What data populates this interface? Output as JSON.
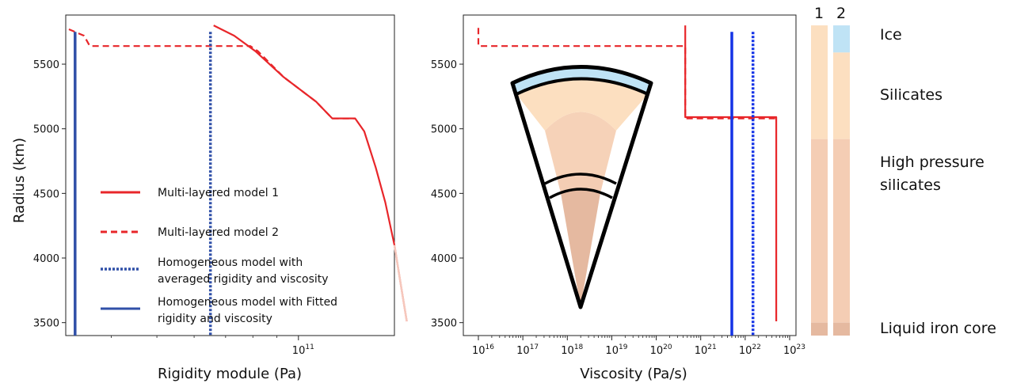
{
  "chart_data": [
    {
      "type": "line",
      "xlabel": "Rigidity module (Pa)",
      "ylabel": "Radius (km)",
      "xscale": "log",
      "xlim": [
        32000000000.0,
        160000000000.0
      ],
      "ylim": [
        3400,
        5880
      ],
      "xticks": [
        {
          "value": 100000000000.0,
          "label": "10",
          "sup": "11"
        }
      ],
      "yticks": [
        {
          "value": 3500,
          "label": "3500"
        },
        {
          "value": 4000,
          "label": "4000"
        },
        {
          "value": 4500,
          "label": "4500"
        },
        {
          "value": 5000,
          "label": "5000"
        },
        {
          "value": 5500,
          "label": "5500"
        }
      ],
      "legend_position": "lower-left",
      "series": [
        {
          "name": "Multi-layered model 1",
          "color": "#e8262a",
          "style": "solid",
          "points": [
            [
              66000000000.0,
              5800
            ],
            [
              73000000000.0,
              5720
            ],
            [
              81000000000.0,
              5600
            ],
            [
              93000000000.0,
              5400
            ],
            [
              109000000000.0,
              5210
            ],
            [
              118000000000.0,
              5080
            ],
            [
              132000000000.0,
              5080
            ],
            [
              138000000000.0,
              4980
            ],
            [
              146000000000.0,
              4700
            ],
            [
              153000000000.0,
              4430
            ],
            [
              160000000000.0,
              4100
            ],
            [
              165000000000.0,
              3800
            ],
            [
              170000000000.0,
              3510
            ]
          ]
        },
        {
          "name": "Multi-layered model 2",
          "color": "#e8262a",
          "style": "dashed",
          "points": [
            [
              32500000000.0,
              5770
            ],
            [
              35000000000.0,
              5720
            ],
            [
              36000000000.0,
              5640
            ],
            [
              79000000000.0,
              5640
            ],
            [
              82000000000.0,
              5600
            ],
            [
              93000000000.0,
              5400
            ],
            [
              109000000000.0,
              5210
            ],
            [
              118000000000.0,
              5080
            ],
            [
              132000000000.0,
              5080
            ]
          ]
        },
        {
          "name": "Homogeneous model with averaged rigidity and viscosity",
          "color": "#3050a8",
          "style": "dotted",
          "points": [
            [
              65000000000.0,
              5750
            ],
            [
              65000000000.0,
              3400
            ]
          ]
        },
        {
          "name": "Homogeneous model with Fitted rigidity and viscosity",
          "color": "#3050a8",
          "style": "solid",
          "points": [
            [
              33500000000.0,
              5750
            ],
            [
              33500000000.0,
              3400
            ]
          ]
        }
      ]
    },
    {
      "type": "line",
      "xlabel": "Viscosity (Pa/s)",
      "ylabel": "",
      "xscale": "log",
      "xlim": [
        1e+16,
        1e+23
      ],
      "ylim": [
        3400,
        5880
      ],
      "xticks": [
        {
          "value": 1e+16,
          "label": "10",
          "sup": "16"
        },
        {
          "value": 1e+17,
          "label": "10",
          "sup": "17"
        },
        {
          "value": 1e+18,
          "label": "10",
          "sup": "18"
        },
        {
          "value": 1e+19,
          "label": "10",
          "sup": "19"
        },
        {
          "value": 1e+20,
          "label": "10",
          "sup": "20"
        },
        {
          "value": 1e+21,
          "label": "10",
          "sup": "21"
        },
        {
          "value": 1e+22,
          "label": "10",
          "sup": "22"
        },
        {
          "value": 1e+23,
          "label": "10",
          "sup": "23"
        }
      ],
      "yticks": [
        {
          "value": 3500,
          "label": "3500"
        },
        {
          "value": 4000,
          "label": "4000"
        },
        {
          "value": 4500,
          "label": "4500"
        },
        {
          "value": 5000,
          "label": "5000"
        },
        {
          "value": 5500,
          "label": "5500"
        }
      ],
      "series": [
        {
          "name": "Multi-layered model 1",
          "color": "#e8262a",
          "style": "solid",
          "points": [
            [
              4.5e+20,
              5800
            ],
            [
              4.5e+20,
              5090
            ],
            [
              5e+22,
              5090
            ],
            [
              5e+22,
              3510
            ]
          ]
        },
        {
          "name": "Multi-layered model 2",
          "color": "#e8262a",
          "style": "dashed",
          "points": [
            [
              1e+16,
              5780
            ],
            [
              1e+16,
              5640
            ],
            [
              4.5e+20,
              5640
            ],
            [
              4.5e+20,
              5080
            ],
            [
              5e+22,
              5080
            ]
          ]
        },
        {
          "name": "Homogeneous model with Fitted rigidity and viscosity",
          "color": "#1433e6",
          "style": "solid",
          "points": [
            [
              5e+21,
              5750
            ],
            [
              5e+21,
              3400
            ]
          ]
        },
        {
          "name": "Homogeneous model with averaged rigidity and viscosity",
          "color": "#1433e6",
          "style": "dotted",
          "points": [
            [
              1.5e+22,
              5750
            ],
            [
              1.5e+22,
              3400
            ]
          ]
        }
      ]
    }
  ],
  "layer_columns": {
    "headers": [
      "1",
      "2"
    ],
    "colors": {
      "ice": "#bfe3f5",
      "silicates": "#fcdfc0",
      "high_pressure": "#f4cdb4",
      "core": "#e5b9a0"
    },
    "boundaries_radius_km": {
      "column_1": {
        "silicates_top": 5800,
        "high_pressure_top": 4920,
        "core_top": 3500
      },
      "column_2": {
        "ice_top": 5800,
        "silicates_top": 5590,
        "high_pressure_top": 4920,
        "core_top": 3500
      }
    },
    "labels": [
      "Ice",
      "Silicates",
      "High pressure silicates",
      "Liquid iron core"
    ]
  },
  "wedge_diagram": {
    "shells": [
      "ice",
      "silicates",
      "high pressure silicates",
      "high pressure silicates inner",
      "core"
    ],
    "colors": {
      "ice": "#bfe3f5",
      "silicates": "#fcdfc0",
      "high_pressure": "#f4cdb4",
      "core": "#e5b9a0"
    }
  }
}
